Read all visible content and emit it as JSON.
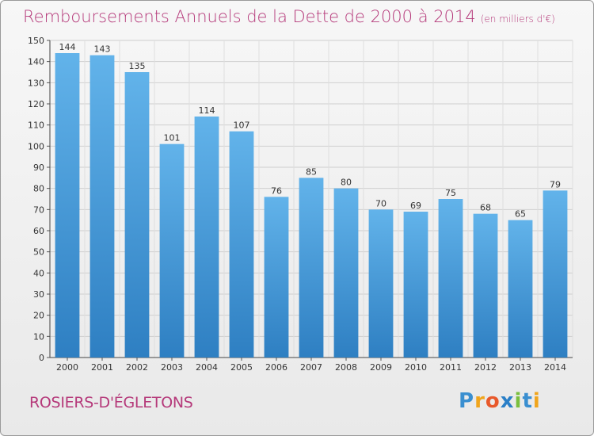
{
  "title": "Remboursements Annuels de la Dette de 2000 à 2014",
  "unit": "(en milliers d'€)",
  "commune": "ROSIERS-D'ÉGLETONS",
  "logo": {
    "letters": [
      "P",
      "r",
      "o",
      "x",
      "i",
      "t",
      "i"
    ],
    "colors": [
      "#3a8fd0",
      "#f0a51c",
      "#e8592b",
      "#2a7fc7",
      "#7abf3f",
      "#3a8fd0",
      "#f0a51c"
    ]
  },
  "colors": {
    "bar_top": "#62b3ea",
    "bar_bottom": "#2e7fc2",
    "title": "#b5397a"
  },
  "chart_data": {
    "type": "bar",
    "title": "Remboursements Annuels de la Dette de 2000 à 2014",
    "xlabel": "",
    "ylabel": "",
    "ylim": [
      0,
      150
    ],
    "yticks": [
      0,
      10,
      20,
      30,
      40,
      50,
      60,
      70,
      80,
      90,
      100,
      110,
      120,
      130,
      140,
      150
    ],
    "grid": true,
    "categories": [
      "2000",
      "2001",
      "2002",
      "2003",
      "2004",
      "2005",
      "2006",
      "2007",
      "2008",
      "2009",
      "2010",
      "2011",
      "2012",
      "2013",
      "2014"
    ],
    "values": [
      144,
      143,
      135,
      101,
      114,
      107,
      76,
      85,
      80,
      70,
      69,
      75,
      68,
      65,
      79
    ]
  }
}
